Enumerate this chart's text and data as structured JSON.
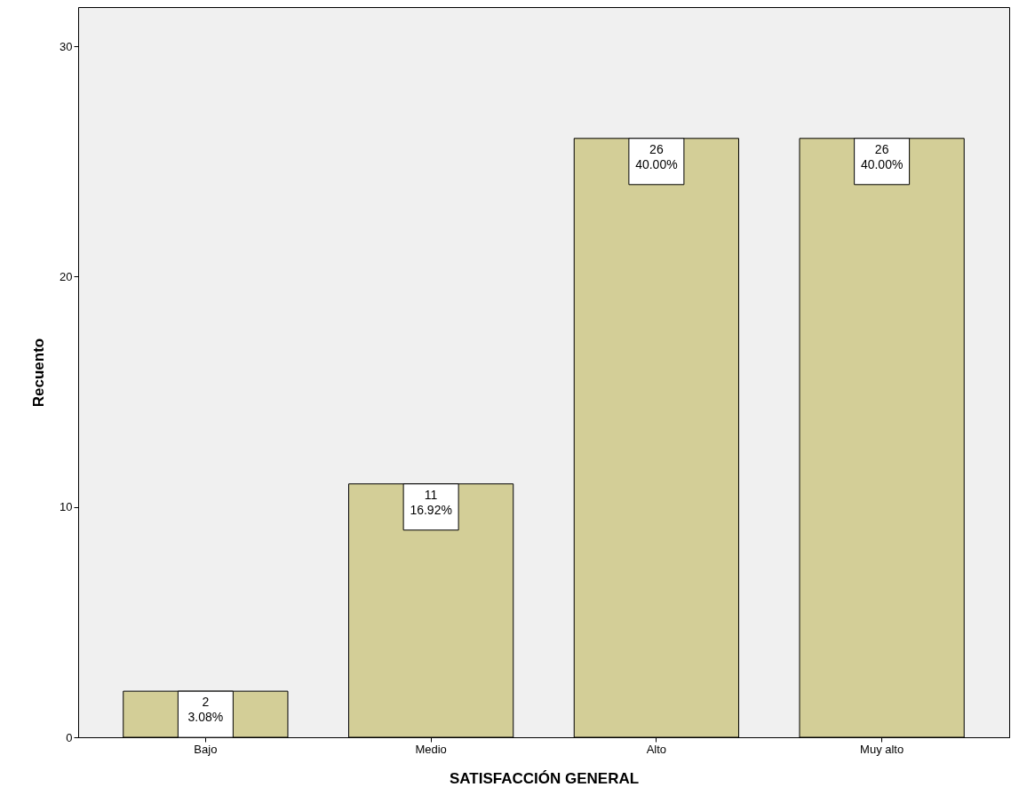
{
  "chart_data": {
    "type": "bar",
    "xlabel": "SATISFACCIÓN GENERAL",
    "ylabel": "Recuento",
    "categories": [
      "Bajo",
      "Medio",
      "Alto",
      "Muy alto"
    ],
    "values": [
      2,
      11,
      26,
      26
    ],
    "value_labels": [
      "2\n3.08%",
      "11\n16.92%",
      "26\n40.00%",
      "26\n40.00%"
    ],
    "color": "#d3ce97",
    "ylim": [
      0,
      31.7
    ],
    "yticks": [
      0,
      10,
      20,
      30
    ],
    "grid": false
  }
}
